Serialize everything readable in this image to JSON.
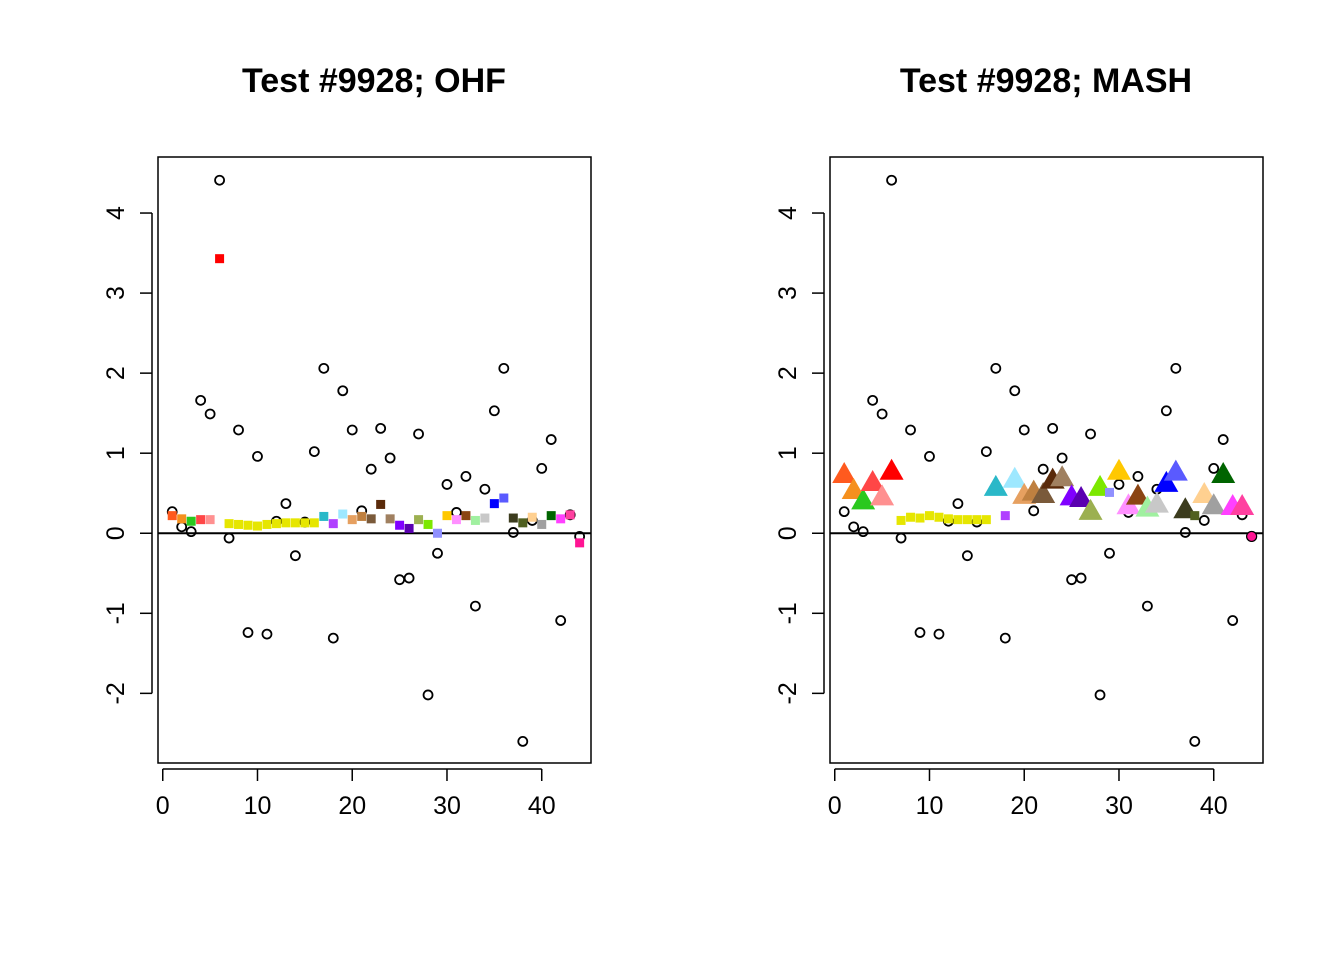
{
  "chart_data": [
    {
      "type": "scatter",
      "title": "Test #9928; OHF",
      "xlabel": "",
      "ylabel": "",
      "xlim": [
        -0.5,
        45.2
      ],
      "ylim": [
        -2.87,
        4.7
      ],
      "xticks": [
        0,
        10,
        20,
        30,
        40
      ],
      "yticks": [
        -2,
        -1,
        0,
        1,
        2,
        3,
        4
      ],
      "hline": 0,
      "grid": false,
      "observed": {
        "marker": "open-circle",
        "x": [
          1,
          2,
          3,
          4,
          5,
          6,
          7,
          8,
          9,
          10,
          11,
          12,
          13,
          14,
          15,
          16,
          17,
          18,
          19,
          20,
          21,
          22,
          23,
          24,
          25,
          26,
          27,
          28,
          29,
          30,
          31,
          32,
          33,
          34,
          35,
          36,
          37,
          38,
          39,
          40,
          41,
          42,
          43,
          44
        ],
        "y": [
          0.27,
          0.08,
          0.02,
          1.66,
          1.49,
          4.41,
          -0.06,
          1.29,
          -1.24,
          0.96,
          -1.26,
          0.15,
          0.37,
          -0.28,
          0.14,
          1.02,
          2.06,
          -1.31,
          1.78,
          1.29,
          0.28,
          0.8,
          1.31,
          0.94,
          -0.58,
          -0.56,
          1.24,
          -2.02,
          -0.25,
          0.61,
          0.26,
          0.71,
          -0.91,
          0.55,
          1.53,
          2.06,
          0.01,
          -2.6,
          0.16,
          0.81,
          1.17,
          -1.09,
          0.23,
          -0.04
        ]
      },
      "estimates": {
        "marker": "filled-square",
        "x": [
          1,
          2,
          3,
          4,
          5,
          6,
          7,
          8,
          9,
          10,
          11,
          12,
          13,
          14,
          15,
          16,
          17,
          18,
          19,
          20,
          21,
          22,
          23,
          24,
          25,
          26,
          27,
          28,
          29,
          30,
          31,
          32,
          33,
          34,
          35,
          36,
          37,
          38,
          39,
          40,
          41,
          42,
          43,
          44
        ],
        "y": [
          0.22,
          0.18,
          0.15,
          0.17,
          0.17,
          3.43,
          0.12,
          0.11,
          0.1,
          0.09,
          0.11,
          0.12,
          0.13,
          0.13,
          0.13,
          0.13,
          0.21,
          0.12,
          0.24,
          0.17,
          0.21,
          0.18,
          0.36,
          0.18,
          0.1,
          0.06,
          0.17,
          0.11,
          0.0,
          0.22,
          0.17,
          0.22,
          0.16,
          0.19,
          0.37,
          0.44,
          0.19,
          0.13,
          0.2,
          0.11,
          0.22,
          0.18,
          0.23,
          -0.12
        ],
        "colors": [
          "#FF5A1E",
          "#F5901E",
          "#2AC81E",
          "#FF4646",
          "#FF9090",
          "#FF0000",
          "#E6E600",
          "#E6E600",
          "#E6E600",
          "#E6E600",
          "#E6E600",
          "#E6E600",
          "#E6E600",
          "#E6E600",
          "#E6E600",
          "#E6E600",
          "#2AB8C8",
          "#B040FF",
          "#9EE8FF",
          "#E6A060",
          "#BF8040",
          "#7A5A3A",
          "#5A2A0A",
          "#A08060",
          "#8000FF",
          "#5A00B0",
          "#9CB050",
          "#7CE800",
          "#9090FF",
          "#FFC800",
          "#FF90FF",
          "#8B4513",
          "#A0F0A0",
          "#C8C8C8",
          "#0000FF",
          "#5A5AFF",
          "#3C3C1E",
          "#506020",
          "#FFD090",
          "#A0A0A0",
          "#006400",
          "#FF40FF",
          "#FF40A0",
          "#FF1493"
        ]
      }
    },
    {
      "type": "scatter",
      "title": "Test #9928; MASH",
      "xlabel": "",
      "ylabel": "",
      "xlim": [
        -0.5,
        45.2
      ],
      "ylim": [
        -2.87,
        4.7
      ],
      "xticks": [
        0,
        10,
        20,
        30,
        40
      ],
      "yticks": [
        -2,
        -1,
        0,
        1,
        2,
        3,
        4
      ],
      "hline": 0,
      "grid": false,
      "observed": {
        "marker": "open-circle",
        "x": [
          1,
          2,
          3,
          4,
          5,
          6,
          7,
          8,
          9,
          10,
          11,
          12,
          13,
          14,
          15,
          16,
          17,
          18,
          19,
          20,
          21,
          22,
          23,
          24,
          25,
          26,
          27,
          28,
          29,
          30,
          31,
          32,
          33,
          34,
          35,
          36,
          37,
          38,
          39,
          40,
          41,
          42,
          43,
          44
        ],
        "y": [
          0.27,
          0.08,
          0.02,
          1.66,
          1.49,
          4.41,
          -0.06,
          1.29,
          -1.24,
          0.96,
          -1.26,
          0.15,
          0.37,
          -0.28,
          0.14,
          1.02,
          2.06,
          -1.31,
          1.78,
          1.29,
          0.28,
          0.8,
          1.31,
          0.94,
          -0.58,
          -0.56,
          1.24,
          -2.02,
          -0.25,
          0.61,
          0.26,
          0.71,
          -0.91,
          0.55,
          1.53,
          2.06,
          0.01,
          -2.6,
          0.16,
          0.81,
          1.17,
          -1.09,
          0.23,
          -0.04
        ]
      },
      "estimates": {
        "x": [
          1,
          2,
          3,
          4,
          5,
          6,
          7,
          8,
          9,
          10,
          11,
          12,
          13,
          14,
          15,
          16,
          17,
          18,
          19,
          20,
          21,
          22,
          23,
          24,
          25,
          26,
          27,
          28,
          29,
          30,
          31,
          32,
          33,
          34,
          35,
          36,
          37,
          38,
          39,
          40,
          41,
          42,
          43,
          44
        ],
        "y": [
          0.74,
          0.54,
          0.41,
          0.64,
          0.46,
          0.78,
          0.16,
          0.2,
          0.19,
          0.22,
          0.2,
          0.18,
          0.17,
          0.17,
          0.17,
          0.17,
          0.58,
          0.22,
          0.68,
          0.48,
          0.52,
          0.49,
          0.67,
          0.7,
          0.46,
          0.44,
          0.28,
          0.58,
          0.51,
          0.78,
          0.35,
          0.47,
          0.32,
          0.37,
          0.63,
          0.77,
          0.3,
          0.22,
          0.49,
          0.35,
          0.74,
          0.34,
          0.34,
          -0.04
        ],
        "markers": [
          "triangle",
          "triangle",
          "triangle",
          "triangle",
          "triangle",
          "triangle",
          "square",
          "square",
          "square",
          "square",
          "square",
          "square",
          "square",
          "square",
          "square",
          "square",
          "triangle",
          "square",
          "triangle",
          "triangle",
          "triangle",
          "triangle",
          "triangle",
          "triangle",
          "triangle",
          "triangle",
          "triangle",
          "triangle",
          "square",
          "triangle",
          "triangle",
          "triangle",
          "triangle",
          "triangle",
          "triangle",
          "triangle",
          "triangle",
          "square",
          "triangle",
          "triangle",
          "triangle",
          "triangle",
          "triangle",
          "circle"
        ],
        "colors": [
          "#FF5A1E",
          "#F5901E",
          "#2AC81E",
          "#FF4646",
          "#FF9090",
          "#FF0000",
          "#E6E600",
          "#E6E600",
          "#E6E600",
          "#E6E600",
          "#E6E600",
          "#E6E600",
          "#E6E600",
          "#E6E600",
          "#E6E600",
          "#E6E600",
          "#2AB8C8",
          "#B040FF",
          "#9EE8FF",
          "#E6A060",
          "#BF8040",
          "#7A5A3A",
          "#5A2A0A",
          "#A08060",
          "#8000FF",
          "#5A00B0",
          "#9CB050",
          "#7CE800",
          "#9090FF",
          "#FFC800",
          "#FF90FF",
          "#8B4513",
          "#A0F0A0",
          "#C8C8C8",
          "#0000FF",
          "#5A5AFF",
          "#3C3C1E",
          "#506020",
          "#FFD090",
          "#A0A0A0",
          "#006400",
          "#FF40FF",
          "#FF40A0",
          "#FF1493"
        ]
      }
    }
  ]
}
